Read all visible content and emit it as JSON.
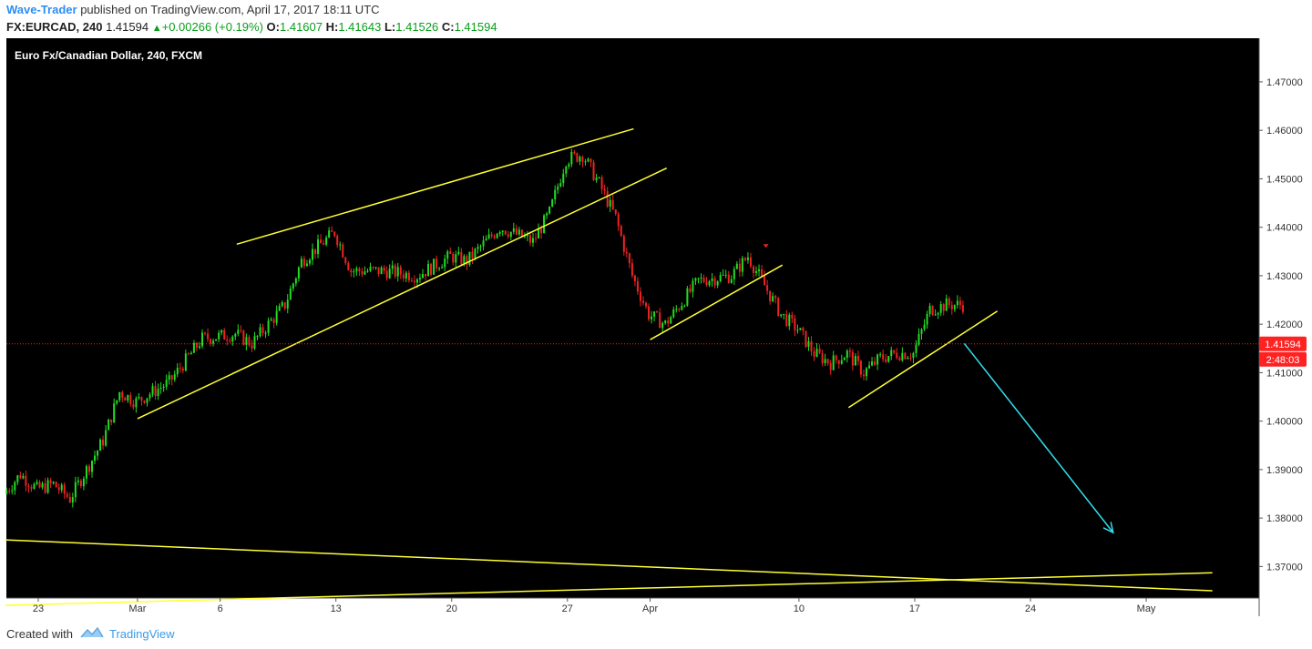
{
  "header": {
    "author": "Wave-Trader",
    "published_text": "published on TradingView.com, April 17, 2017 18:11 UTC",
    "symbol": "FX:EURCAD, 240",
    "last": "1.41594",
    "change": "+0.00266 (+0.19%)",
    "o_label": "O:",
    "o_value": "1.41607",
    "h_label": "H:",
    "h_value": "1.41643",
    "l_label": "L:",
    "l_value": "1.41526",
    "c_label": "C:",
    "c_value": "1.41594"
  },
  "footer": {
    "created_with": "Created with",
    "brand": "TradingView"
  },
  "colors": {
    "background": "#000000",
    "up_candle": "#22dd22",
    "down_candle": "#ee2222",
    "trendline": "#ffff33",
    "arrow": "#33ddee",
    "price_line": "#ff2222",
    "price_tag": "#ff2222",
    "axis_text": "#333333"
  },
  "chart_data": {
    "type": "candlestick",
    "title": "Euro Fx/Canadian Dollar, 240, FXCM",
    "ylim": [
      1.3635,
      1.479
    ],
    "y_ticks": [
      "1.47000",
      "1.46000",
      "1.45000",
      "1.44000",
      "1.43000",
      "1.42000",
      "1.41000",
      "1.40000",
      "1.39000",
      "1.38000",
      "1.37000"
    ],
    "x_ticks": [
      "23",
      "Mar",
      "6",
      "13",
      "20",
      "27",
      "Apr",
      "10",
      "17",
      "24",
      "May"
    ],
    "current_price": "1.41594",
    "countdown": "2:48:03",
    "grid": false,
    "price_path": [
      [
        "2017-02-21",
        1.385
      ],
      [
        "2017-02-22",
        1.389
      ],
      [
        "2017-02-23",
        1.386
      ],
      [
        "2017-02-24",
        1.387
      ],
      [
        "2017-02-25",
        1.384
      ],
      [
        "2017-02-27",
        1.396
      ],
      [
        "2017-02-28",
        1.406
      ],
      [
        "2017-03-01",
        1.404
      ],
      [
        "2017-03-03",
        1.408
      ],
      [
        "2017-03-05",
        1.417
      ],
      [
        "2017-03-07",
        1.418
      ],
      [
        "2017-03-08",
        1.416
      ],
      [
        "2017-03-10",
        1.424
      ],
      [
        "2017-03-11",
        1.433
      ],
      [
        "2017-03-13",
        1.439
      ],
      [
        "2017-03-14",
        1.431
      ],
      [
        "2017-03-16",
        1.431
      ],
      [
        "2017-03-18",
        1.43
      ],
      [
        "2017-03-20",
        1.434
      ],
      [
        "2017-03-21",
        1.433
      ],
      [
        "2017-03-23",
        1.44
      ],
      [
        "2017-03-25",
        1.437
      ],
      [
        "2017-03-26",
        1.443
      ],
      [
        "2017-03-27",
        1.454
      ],
      [
        "2017-03-28",
        1.455
      ],
      [
        "2017-03-29",
        1.449
      ],
      [
        "2017-03-30",
        1.442
      ],
      [
        "2017-03-31",
        1.43
      ],
      [
        "2017-04-01",
        1.422
      ],
      [
        "2017-04-02",
        1.42
      ],
      [
        "2017-04-04",
        1.429
      ],
      [
        "2017-04-06",
        1.43
      ],
      [
        "2017-04-07",
        1.434
      ],
      [
        "2017-04-08",
        1.428
      ],
      [
        "2017-04-09",
        1.422
      ],
      [
        "2017-04-10",
        1.419
      ],
      [
        "2017-04-11",
        1.414
      ],
      [
        "2017-04-12",
        1.412
      ],
      [
        "2017-04-13",
        1.414
      ],
      [
        "2017-04-14",
        1.41
      ],
      [
        "2017-04-15",
        1.413
      ],
      [
        "2017-04-16",
        1.414
      ],
      [
        "2017-04-17",
        1.414
      ],
      [
        "2017-04-18",
        1.423
      ],
      [
        "2017-04-19",
        1.424
      ],
      [
        "2017-04-20",
        1.424
      ]
    ],
    "drawings": [
      {
        "name": "channel-upper-line",
        "kind": "trendline",
        "start": [
          "2017-03-07",
          1.4365
        ],
        "end": [
          "2017-03-31",
          1.4603
        ]
      },
      {
        "name": "channel-lower-line",
        "kind": "trendline",
        "start": [
          "2017-03-01",
          1.4005
        ],
        "end": [
          "2017-04-02",
          1.4522
        ]
      },
      {
        "name": "april-small-trendline",
        "kind": "trendline",
        "start": [
          "2017-04-01",
          1.4168
        ],
        "end": [
          "2017-04-09",
          1.4322
        ]
      },
      {
        "name": "mid-april-trendline",
        "kind": "trendline",
        "start": [
          "2017-04-13",
          1.4028
        ],
        "end": [
          "2017-04-22",
          1.4227
        ]
      },
      {
        "name": "long-descending-line",
        "kind": "trendline",
        "start": [
          "2017-02-21",
          1.3755
        ],
        "end": [
          "2017-05-05",
          1.365
        ]
      },
      {
        "name": "long-ascending-line",
        "kind": "trendline",
        "start": [
          "2017-02-21",
          1.362
        ],
        "end": [
          "2017-05-05",
          1.3687
        ]
      },
      {
        "name": "projection-arrow",
        "kind": "arrow",
        "start": [
          "2017-04-20",
          1.416
        ],
        "end": [
          "2017-04-29",
          1.377
        ]
      }
    ]
  }
}
